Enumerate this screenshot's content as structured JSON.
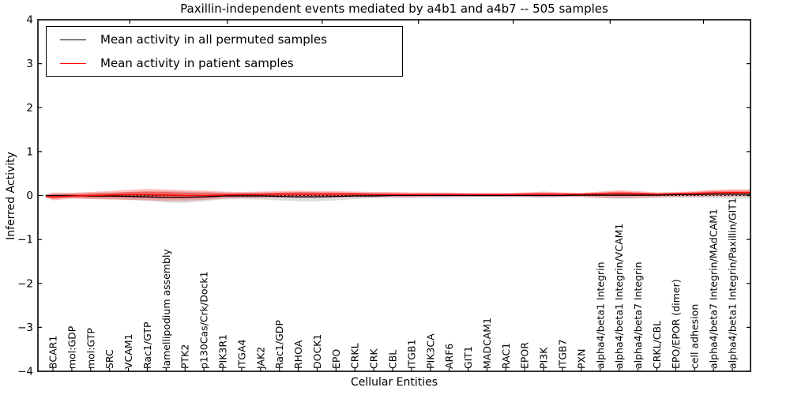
{
  "figure": {
    "background": "#ffffff",
    "frame_color": "#000000"
  },
  "chart_data": {
    "type": "line",
    "title": "Paxillin-independent events mediated by a4b1 and a4b7 -- 505 samples",
    "xlabel": "Cellular Entities",
    "ylabel": "Inferred Activity",
    "ylim": [
      -4,
      4
    ],
    "yticks": [
      4,
      3,
      2,
      1,
      0,
      -1,
      -2,
      -3,
      -4
    ],
    "ytick_labels": [
      "4",
      "3",
      "2",
      "1",
      "0",
      "−1",
      "−2",
      "−3",
      "−4"
    ],
    "zero_line": 0,
    "grid": false,
    "legend_position": "upper left",
    "categories": [
      "BCAR1",
      "mol:GDP",
      "mol:GTP",
      "SRC",
      "VCAM1",
      "Rac1/GTP",
      "lamellipodium assembly",
      "PTK2",
      "p130Cas/Crk/Dock1",
      "PIK3R1",
      "ITGA4",
      "JAK2",
      "Rac1/GDP",
      "RHOA",
      "DOCK1",
      "EPO",
      "CRKL",
      "CRK",
      "CBL",
      "ITGB1",
      "PIK3CA",
      "ARF6",
      "GIT1",
      "MADCAM1",
      "RAC1",
      "EPOR",
      "PI3K",
      "ITGB7",
      "PXN",
      "alpha4/beta1 Integrin",
      "alpha4/beta1 Integrin/VCAM1",
      "alpha4/beta7 Integrin",
      "CRKL/CBL",
      "EPO/EPOR (dimer)",
      "cell adhesion",
      "alpha4/beta7 Integrin/MAdCAM1",
      "alpha4/beta1 Integrin/Paxillin/GIT1"
    ],
    "series": [
      {
        "name": "Mean activity in all permuted samples",
        "color": "#000000",
        "values": [
          0.0,
          0.0,
          -0.01,
          -0.01,
          -0.02,
          -0.03,
          -0.04,
          -0.04,
          -0.03,
          -0.01,
          -0.01,
          -0.01,
          -0.02,
          -0.03,
          -0.03,
          -0.02,
          -0.01,
          -0.01,
          0.0,
          0.0,
          0.0,
          0.0,
          0.0,
          0.0,
          0.0,
          0.0,
          0.0,
          0.0,
          0.01,
          0.01,
          0.01,
          0.01,
          0.01,
          0.02,
          0.02,
          0.03,
          0.03
        ]
      },
      {
        "name": "Mean activity in patient samples",
        "color": "#ff0000",
        "values": [
          -0.03,
          -0.01,
          0.0,
          0.01,
          0.02,
          0.02,
          0.01,
          0.0,
          0.0,
          0.01,
          0.02,
          0.02,
          0.03,
          0.03,
          0.03,
          0.03,
          0.03,
          0.02,
          0.02,
          0.02,
          0.02,
          0.02,
          0.02,
          0.02,
          0.02,
          0.03,
          0.03,
          0.03,
          0.03,
          0.04,
          0.05,
          0.04,
          0.03,
          0.04,
          0.05,
          0.06,
          0.07
        ]
      }
    ],
    "bands": [
      {
        "name": "permuted-samples-range",
        "color": "#999999",
        "opacity": 0.32,
        "layers": [
          1.0
        ],
        "layer_opacities": [
          0.32
        ],
        "upper": [
          0.04,
          0.05,
          0.06,
          0.07,
          0.08,
          0.09,
          0.1,
          0.09,
          0.08,
          0.07,
          0.06,
          0.07,
          0.07,
          0.08,
          0.08,
          0.07,
          0.06,
          0.05,
          0.05,
          0.05,
          0.05,
          0.05,
          0.04,
          0.04,
          0.04,
          0.04,
          0.05,
          0.04,
          0.04,
          0.05,
          0.06,
          0.06,
          0.05,
          0.05,
          0.06,
          0.07,
          0.08
        ],
        "lower": [
          -0.05,
          -0.06,
          -0.07,
          -0.08,
          -0.1,
          -0.12,
          -0.16,
          -0.17,
          -0.13,
          -0.09,
          -0.08,
          -0.09,
          -0.11,
          -0.13,
          -0.13,
          -0.11,
          -0.08,
          -0.06,
          -0.05,
          -0.05,
          -0.05,
          -0.05,
          -0.04,
          -0.04,
          -0.04,
          -0.04,
          -0.05,
          -0.04,
          -0.04,
          -0.06,
          -0.07,
          -0.07,
          -0.05,
          -0.05,
          -0.05,
          -0.06,
          -0.07
        ]
      },
      {
        "name": "patient-samples-range",
        "color": "#ff0000",
        "opacity": 0.26,
        "layers": [
          1.0,
          0.55
        ],
        "layer_opacities": [
          0.26,
          0.38
        ],
        "upper": [
          0.07,
          0.06,
          0.08,
          0.1,
          0.13,
          0.15,
          0.14,
          0.12,
          0.11,
          0.09,
          0.08,
          0.09,
          0.1,
          0.11,
          0.1,
          0.1,
          0.09,
          0.08,
          0.08,
          0.07,
          0.07,
          0.07,
          0.06,
          0.06,
          0.06,
          0.07,
          0.09,
          0.07,
          0.06,
          0.09,
          0.12,
          0.1,
          0.07,
          0.08,
          0.1,
          0.13,
          0.14
        ],
        "lower": [
          -0.11,
          -0.07,
          -0.08,
          -0.09,
          -0.1,
          -0.11,
          -0.12,
          -0.12,
          -0.1,
          -0.07,
          -0.06,
          -0.06,
          -0.05,
          -0.05,
          -0.05,
          -0.05,
          -0.04,
          -0.04,
          -0.04,
          -0.04,
          -0.03,
          -0.03,
          -0.03,
          -0.03,
          -0.03,
          -0.03,
          -0.04,
          -0.03,
          -0.03,
          -0.05,
          -0.06,
          -0.05,
          -0.04,
          -0.03,
          -0.03,
          -0.02,
          -0.02
        ]
      }
    ]
  }
}
